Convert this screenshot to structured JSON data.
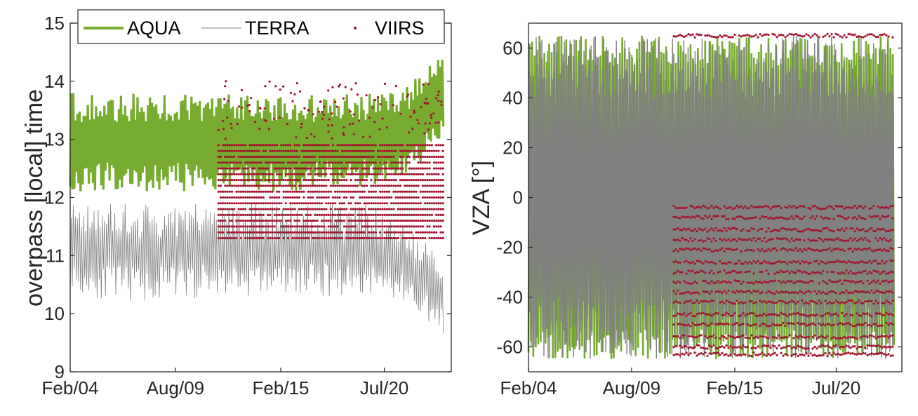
{
  "colors": {
    "aqua": "#77ac30",
    "terra": "#808080",
    "viirs": "#a2142f",
    "axis": "#262626"
  },
  "legend": {
    "placement": "top",
    "items": [
      "AQUA",
      "TERRA",
      "VIIRS"
    ]
  },
  "chart_data": [
    {
      "type": "line",
      "xlabel": "",
      "ylabel": "overpass [local] time",
      "xlim": [
        "2004-02-01",
        "2023-12-31"
      ],
      "ylim": [
        9,
        15
      ],
      "yticks": [
        9,
        10,
        11,
        12,
        13,
        14,
        15
      ],
      "xticks": [
        "2004-02-01",
        "2009-08-01",
        "2015-02-01",
        "2020-07-01"
      ],
      "xticklabels": [
        "Feb/04",
        "Aug/09",
        "Feb/15",
        "Jul/20"
      ],
      "grid": false,
      "legend": "top",
      "series": [
        {
          "name": "AQUA",
          "style": "line",
          "envelope": {
            "x": [
              "2004-02-01",
              "2008-01-01",
              "2012-01-01",
              "2016-01-01",
              "2020-01-01",
              "2021-06-01",
              "2022-06-01",
              "2023-06-01"
            ],
            "min": [
              12.1,
              12.1,
              12.1,
              12.1,
              12.2,
              12.3,
              12.6,
              13.0
            ],
            "max": [
              13.8,
              13.8,
              13.8,
              13.8,
              13.8,
              13.9,
              14.1,
              14.5
            ]
          }
        },
        {
          "name": "TERRA",
          "style": "line",
          "envelope": {
            "x": [
              "2004-02-01",
              "2008-01-01",
              "2012-01-01",
              "2016-01-01",
              "2020-01-01",
              "2021-06-01",
              "2022-06-01",
              "2023-06-01"
            ],
            "min": [
              10.3,
              10.2,
              10.3,
              10.3,
              10.3,
              10.2,
              10.0,
              9.6
            ],
            "max": [
              11.9,
              11.9,
              11.9,
              11.9,
              11.9,
              11.6,
              11.3,
              11.0
            ]
          }
        },
        {
          "name": "VIIRS",
          "style": "dots",
          "x_start": "2011-11-01",
          "levels": [
            11.3,
            11.4,
            11.5,
            11.6,
            11.7,
            11.8,
            11.9,
            12.0,
            12.1,
            12.2,
            12.3,
            12.4,
            12.5,
            12.6,
            12.7,
            12.8,
            12.9
          ],
          "scattered_range": [
            13.0,
            14.0
          ]
        }
      ]
    },
    {
      "type": "line",
      "xlabel": "",
      "ylabel": "VZA [°]",
      "xlim": [
        "2004-02-01",
        "2023-12-31"
      ],
      "ylim": [
        -70,
        70
      ],
      "yticks": [
        -60,
        -40,
        -20,
        0,
        20,
        40,
        60
      ],
      "yticklabels": [
        "-60",
        "-40",
        "-20",
        "0",
        "20",
        "40",
        "60"
      ],
      "xticks": [
        "2004-02-01",
        "2009-08-01",
        "2015-02-01",
        "2020-07-01"
      ],
      "xticklabels": [
        "Feb/04",
        "Aug/09",
        "Feb/15",
        "Jul/20"
      ],
      "grid": false,
      "series": [
        {
          "name": "AQUA",
          "style": "line",
          "range": [
            -65,
            65
          ]
        },
        {
          "name": "TERRA",
          "style": "line",
          "range": [
            -65,
            65
          ]
        },
        {
          "name": "VIIRS",
          "style": "dots",
          "x_start": "2011-11-01",
          "levels": [
            65,
            -4,
            -8,
            -13,
            -17,
            -21,
            -26,
            -30,
            -34,
            -38,
            -42,
            -47,
            -51,
            -56,
            -60,
            -63
          ]
        }
      ]
    }
  ]
}
